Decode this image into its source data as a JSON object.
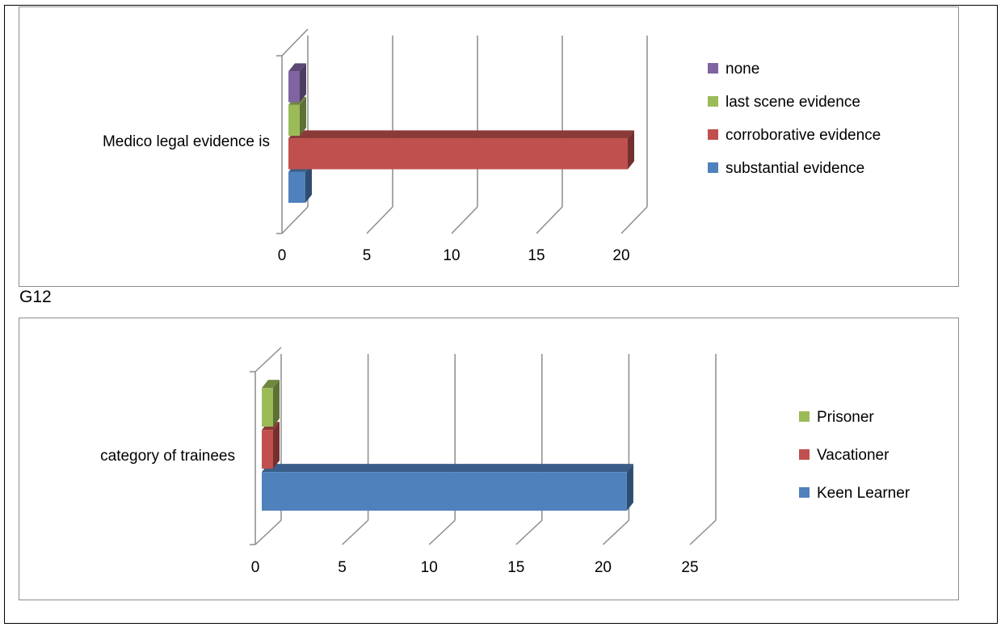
{
  "between_label": "G12",
  "chart_data": [
    {
      "type": "bar",
      "orientation": "horizontal",
      "style": "3d-clustered",
      "categories": [
        "Medico legal evidence is"
      ],
      "series": [
        {
          "name": "substantial evidence",
          "values": [
            1
          ],
          "color": "#4f81bd"
        },
        {
          "name": "corroborative evidence",
          "values": [
            20
          ],
          "color": "#c0504d"
        },
        {
          "name": "last scene evidence",
          "values": [
            0
          ],
          "color": "#9bbb59"
        },
        {
          "name": "none",
          "values": [
            0
          ],
          "color": "#8064a2"
        }
      ],
      "xlim": [
        0,
        20
      ],
      "xticks": [
        "0",
        "5",
        "10",
        "15",
        "20"
      ],
      "grid": true,
      "legend": "right"
    },
    {
      "type": "bar",
      "orientation": "horizontal",
      "style": "3d-clustered",
      "categories": [
        "category of trainees"
      ],
      "series": [
        {
          "name": "Keen Learner",
          "values": [
            21
          ],
          "color": "#4f81bd"
        },
        {
          "name": "Vacationer",
          "values": [
            0
          ],
          "color": "#c0504d"
        },
        {
          "name": "Prisoner",
          "values": [
            0
          ],
          "color": "#9bbb59"
        }
      ],
      "xlim": [
        0,
        25
      ],
      "xticks": [
        "0",
        "5",
        "10",
        "15",
        "20",
        "25"
      ],
      "grid": true,
      "legend": "right"
    }
  ]
}
